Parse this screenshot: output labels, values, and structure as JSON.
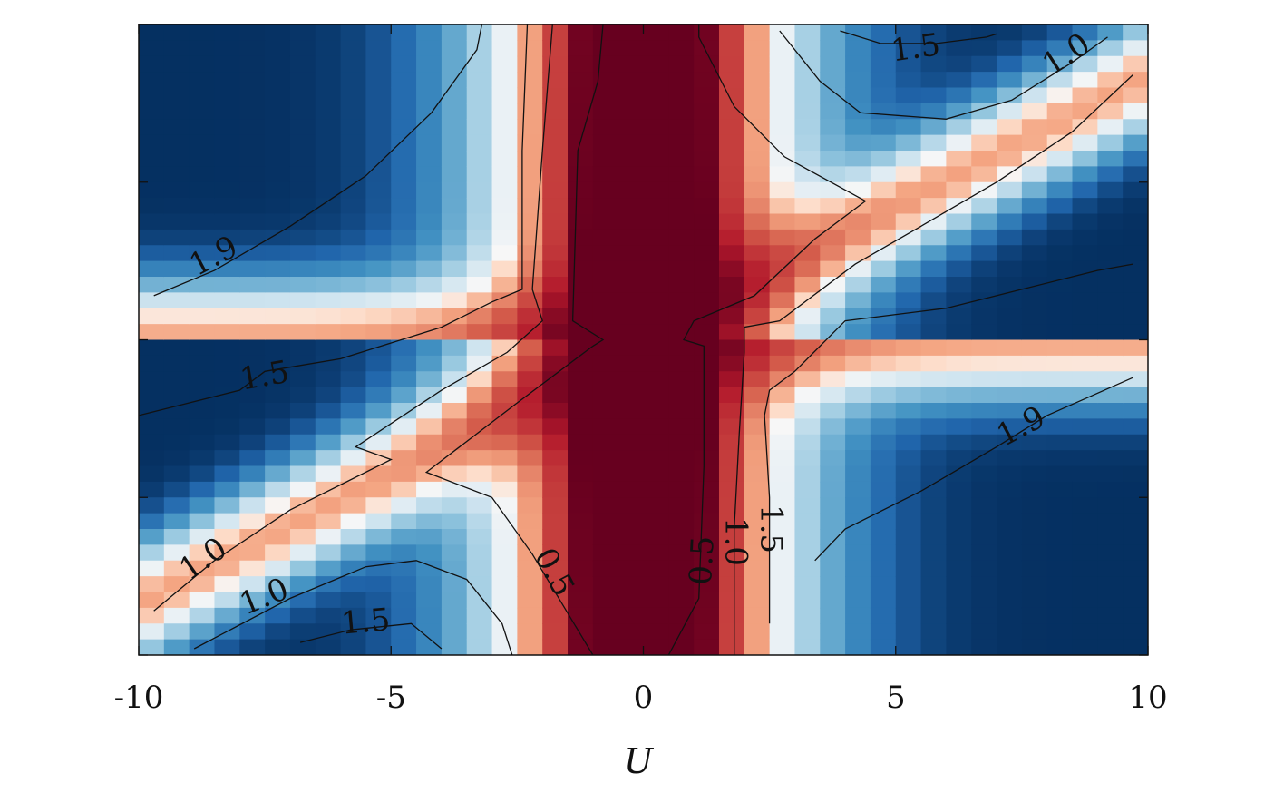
{
  "chart_data": {
    "type": "heatmap",
    "xlabel": "U",
    "ylabel": "",
    "title": "",
    "xlim": [
      -10,
      10
    ],
    "ylim": [
      0,
      1
    ],
    "x_ticks": [
      -10,
      -5,
      0,
      5,
      10
    ],
    "x_tick_labels": [
      "-10",
      "-5",
      "0",
      "5",
      "10"
    ],
    "y_tick_count": 5,
    "y_tick_labels_shown": false,
    "grid": false,
    "colormap": "RdBu",
    "colors": {
      "low": "#67001f",
      "mid": "#f7f7f7",
      "high": "#053061"
    },
    "value_range": [
      0,
      2
    ],
    "grid_resolution": {
      "nx": 40,
      "ny": 40
    },
    "contour_labels": [
      {
        "text": "1.9",
        "x": -8.5,
        "y": 0.63,
        "angle": -28
      },
      {
        "text": "1.5",
        "x": -7.5,
        "y": 0.44,
        "angle": -10
      },
      {
        "text": "1.0",
        "x": -8.7,
        "y": 0.15,
        "angle": -35
      },
      {
        "text": "1.0",
        "x": -7.5,
        "y": 0.09,
        "angle": -22
      },
      {
        "text": "1.5",
        "x": -5.5,
        "y": 0.05,
        "angle": -5
      },
      {
        "text": "0.5",
        "x": -1.8,
        "y": 0.13,
        "angle": 62
      },
      {
        "text": "0.5",
        "x": 1.2,
        "y": 0.15,
        "angle": -87
      },
      {
        "text": "1.0",
        "x": 1.8,
        "y": 0.18,
        "angle": 90
      },
      {
        "text": "1.5",
        "x": 2.5,
        "y": 0.2,
        "angle": 90
      },
      {
        "text": "1.9",
        "x": 7.5,
        "y": 0.36,
        "angle": -28
      },
      {
        "text": "1.5",
        "x": 5.4,
        "y": 0.96,
        "angle": -8
      },
      {
        "text": "1.0",
        "x": 8.4,
        "y": 0.95,
        "angle": -33
      }
    ],
    "contours": [
      {
        "level": 1.9,
        "points": [
          [
            -9.7,
            0.57
          ],
          [
            -8.5,
            0.61
          ],
          [
            -7,
            0.68
          ],
          [
            -5.5,
            0.76
          ],
          [
            -4.2,
            0.86
          ],
          [
            -3.3,
            0.96
          ],
          [
            -3.2,
            1.0
          ]
        ]
      },
      {
        "level": 1.5,
        "points": [
          [
            -10,
            0.38
          ],
          [
            -9,
            0.4
          ],
          [
            -8,
            0.42
          ],
          [
            -7.5,
            0.45
          ],
          [
            -6,
            0.47
          ],
          [
            -4,
            0.52
          ],
          [
            -3,
            0.56
          ],
          [
            -2.4,
            0.58
          ],
          [
            -2.4,
            0.8
          ],
          [
            -2.3,
            1.0
          ]
        ]
      },
      {
        "level": 1.0,
        "points": [
          [
            -9.7,
            0.07
          ],
          [
            -8.5,
            0.15
          ],
          [
            -7,
            0.23
          ],
          [
            -5,
            0.31
          ],
          [
            -5.7,
            0.33
          ],
          [
            -4,
            0.42
          ],
          [
            -2.7,
            0.48
          ],
          [
            -2,
            0.53
          ],
          [
            -2.2,
            0.58
          ],
          [
            -2,
            0.8
          ],
          [
            -1.8,
            1.0
          ]
        ]
      },
      {
        "level": 1.0,
        "points": [
          [
            -8.9,
            0.01
          ],
          [
            -7,
            0.09
          ],
          [
            -5.5,
            0.14
          ],
          [
            -4.5,
            0.15
          ],
          [
            -3.5,
            0.12
          ],
          [
            -2.8,
            0.05
          ],
          [
            -2.6,
            0.0
          ]
        ]
      },
      {
        "level": 1.5,
        "points": [
          [
            -6.8,
            0.02
          ],
          [
            -5.8,
            0.04
          ],
          [
            -4.6,
            0.05
          ],
          [
            -4.0,
            0.01
          ]
        ]
      },
      {
        "level": 0.5,
        "points": [
          [
            -1.0,
            0.0
          ],
          [
            -2.2,
            0.16
          ],
          [
            -3.0,
            0.25
          ],
          [
            -4.3,
            0.29
          ],
          [
            -2.5,
            0.4
          ],
          [
            -1.0,
            0.49
          ],
          [
            -0.8,
            0.5
          ],
          [
            -1.4,
            0.53
          ],
          [
            -1.3,
            0.8
          ],
          [
            -0.9,
            0.91
          ],
          [
            -0.8,
            1.0
          ]
        ]
      },
      {
        "level": 0.5,
        "points": [
          [
            0.5,
            0.0
          ],
          [
            1.1,
            0.09
          ],
          [
            1.2,
            0.3
          ],
          [
            1.2,
            0.49
          ],
          [
            0.8,
            0.5
          ],
          [
            1.0,
            0.53
          ],
          [
            2.2,
            0.57
          ],
          [
            3.4,
            0.66
          ],
          [
            4.4,
            0.72
          ],
          [
            2.8,
            0.79
          ],
          [
            1.8,
            0.87
          ],
          [
            1.1,
            0.98
          ],
          [
            1.1,
            1.0
          ]
        ]
      },
      {
        "level": 1.0,
        "points": [
          [
            1.8,
            0.0
          ],
          [
            1.8,
            0.2
          ],
          [
            1.9,
            0.35
          ],
          [
            2.0,
            0.48
          ],
          [
            2.0,
            0.52
          ],
          [
            2.7,
            0.53
          ],
          [
            4.2,
            0.62
          ],
          [
            5.5,
            0.68
          ],
          [
            7.0,
            0.75
          ],
          [
            8.5,
            0.83
          ],
          [
            9.7,
            0.92
          ]
        ]
      },
      {
        "level": 1.5,
        "points": [
          [
            2.5,
            0.05
          ],
          [
            2.5,
            0.25
          ],
          [
            2.4,
            0.38
          ],
          [
            2.5,
            0.42
          ],
          [
            3.0,
            0.45
          ],
          [
            4.0,
            0.53
          ],
          [
            6.0,
            0.55
          ],
          [
            7.5,
            0.58
          ],
          [
            9.0,
            0.61
          ],
          [
            9.7,
            0.62
          ]
        ]
      },
      {
        "level": 1.9,
        "points": [
          [
            3.4,
            0.15
          ],
          [
            4.0,
            0.2
          ],
          [
            5.5,
            0.26
          ],
          [
            7.0,
            0.33
          ],
          [
            8.0,
            0.38
          ],
          [
            9.7,
            0.44
          ]
        ]
      },
      {
        "level": 1.0,
        "points": [
          [
            2.7,
            0.99
          ],
          [
            3.5,
            0.91
          ],
          [
            4.3,
            0.86
          ],
          [
            6.0,
            0.85
          ],
          [
            7.3,
            0.88
          ],
          [
            8.5,
            0.94
          ],
          [
            9.2,
            0.98
          ]
        ]
      },
      {
        "level": 1.5,
        "points": [
          [
            3.9,
            0.99
          ],
          [
            4.7,
            0.97
          ],
          [
            5.8,
            0.97
          ],
          [
            6.8,
            0.98
          ],
          [
            7.0,
            0.985
          ]
        ]
      }
    ]
  }
}
